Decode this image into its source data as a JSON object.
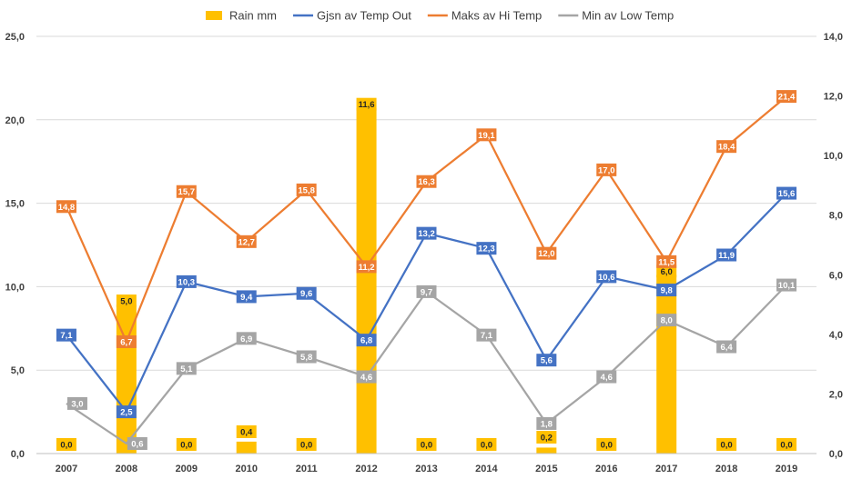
{
  "chart_data": {
    "type": "bar",
    "categories": [
      "2007",
      "2008",
      "2009",
      "2010",
      "2011",
      "2012",
      "2013",
      "2014",
      "2015",
      "2016",
      "2017",
      "2018",
      "2019"
    ],
    "y_left": {
      "min": 0,
      "max": 25,
      "step": 5,
      "ticks": [
        "0,0",
        "5,0",
        "10,0",
        "15,0",
        "20,0",
        "25,0"
      ]
    },
    "y_right": {
      "min": 0,
      "max": 14,
      "step": 2,
      "ticks": [
        "0,0",
        "2,0",
        "4,0",
        "6,0",
        "8,0",
        "10,0",
        "12,0",
        "14,0"
      ]
    },
    "grid": true,
    "legend_position": "top",
    "series": [
      {
        "name": "Rain mm",
        "type": "bar",
        "axis": "right",
        "color": "#FFC000",
        "values": [
          0.0,
          5.0,
          0.0,
          0.4,
          0.0,
          11.6,
          0.0,
          0.0,
          0.2,
          0.0,
          6.0,
          0.0,
          0.0
        ],
        "labels": [
          "0,0",
          "5,0",
          "0,0",
          "0,4",
          "0,0",
          "11,6",
          "0,0",
          "0,0",
          "0,2",
          "0,0",
          "6,0",
          "0,0",
          "0,0"
        ]
      },
      {
        "name": "Gjsn av Temp Out",
        "type": "line",
        "axis": "left",
        "color": "#4472C4",
        "values": [
          7.1,
          2.5,
          10.3,
          9.4,
          9.6,
          6.8,
          13.2,
          12.3,
          5.6,
          10.6,
          9.8,
          11.9,
          15.6
        ],
        "labels": [
          "7,1",
          "2,5",
          "10,3",
          "9,4",
          "9,6",
          "6,8",
          "13,2",
          "12,3",
          "5,6",
          "10,6",
          "9,8",
          "11,9",
          "15,6"
        ]
      },
      {
        "name": "Maks av Hi Temp",
        "type": "line",
        "axis": "left",
        "color": "#ED7D31",
        "values": [
          14.8,
          6.7,
          15.7,
          12.7,
          15.8,
          11.2,
          16.3,
          19.1,
          12.0,
          17.0,
          11.5,
          18.4,
          21.4
        ],
        "labels": [
          "14,8",
          "6,7",
          "15,7",
          "12,7",
          "15,8",
          "11,2",
          "16,3",
          "19,1",
          "12,0",
          "17,0",
          "11,5",
          "18,4",
          "21,4"
        ]
      },
      {
        "name": "Min av Low Temp",
        "type": "line",
        "axis": "left",
        "color": "#A5A5A5",
        "values": [
          3.0,
          0.6,
          5.1,
          6.9,
          5.8,
          4.6,
          9.7,
          7.1,
          1.8,
          4.6,
          8.0,
          6.4,
          10.1
        ],
        "labels": [
          "3,0",
          "0,6",
          "5,1",
          "6,9",
          "5,8",
          "4,6",
          "9,7",
          "7,1",
          "1,8",
          "4,6",
          "8,0",
          "6,4",
          "10,1"
        ]
      }
    ]
  }
}
